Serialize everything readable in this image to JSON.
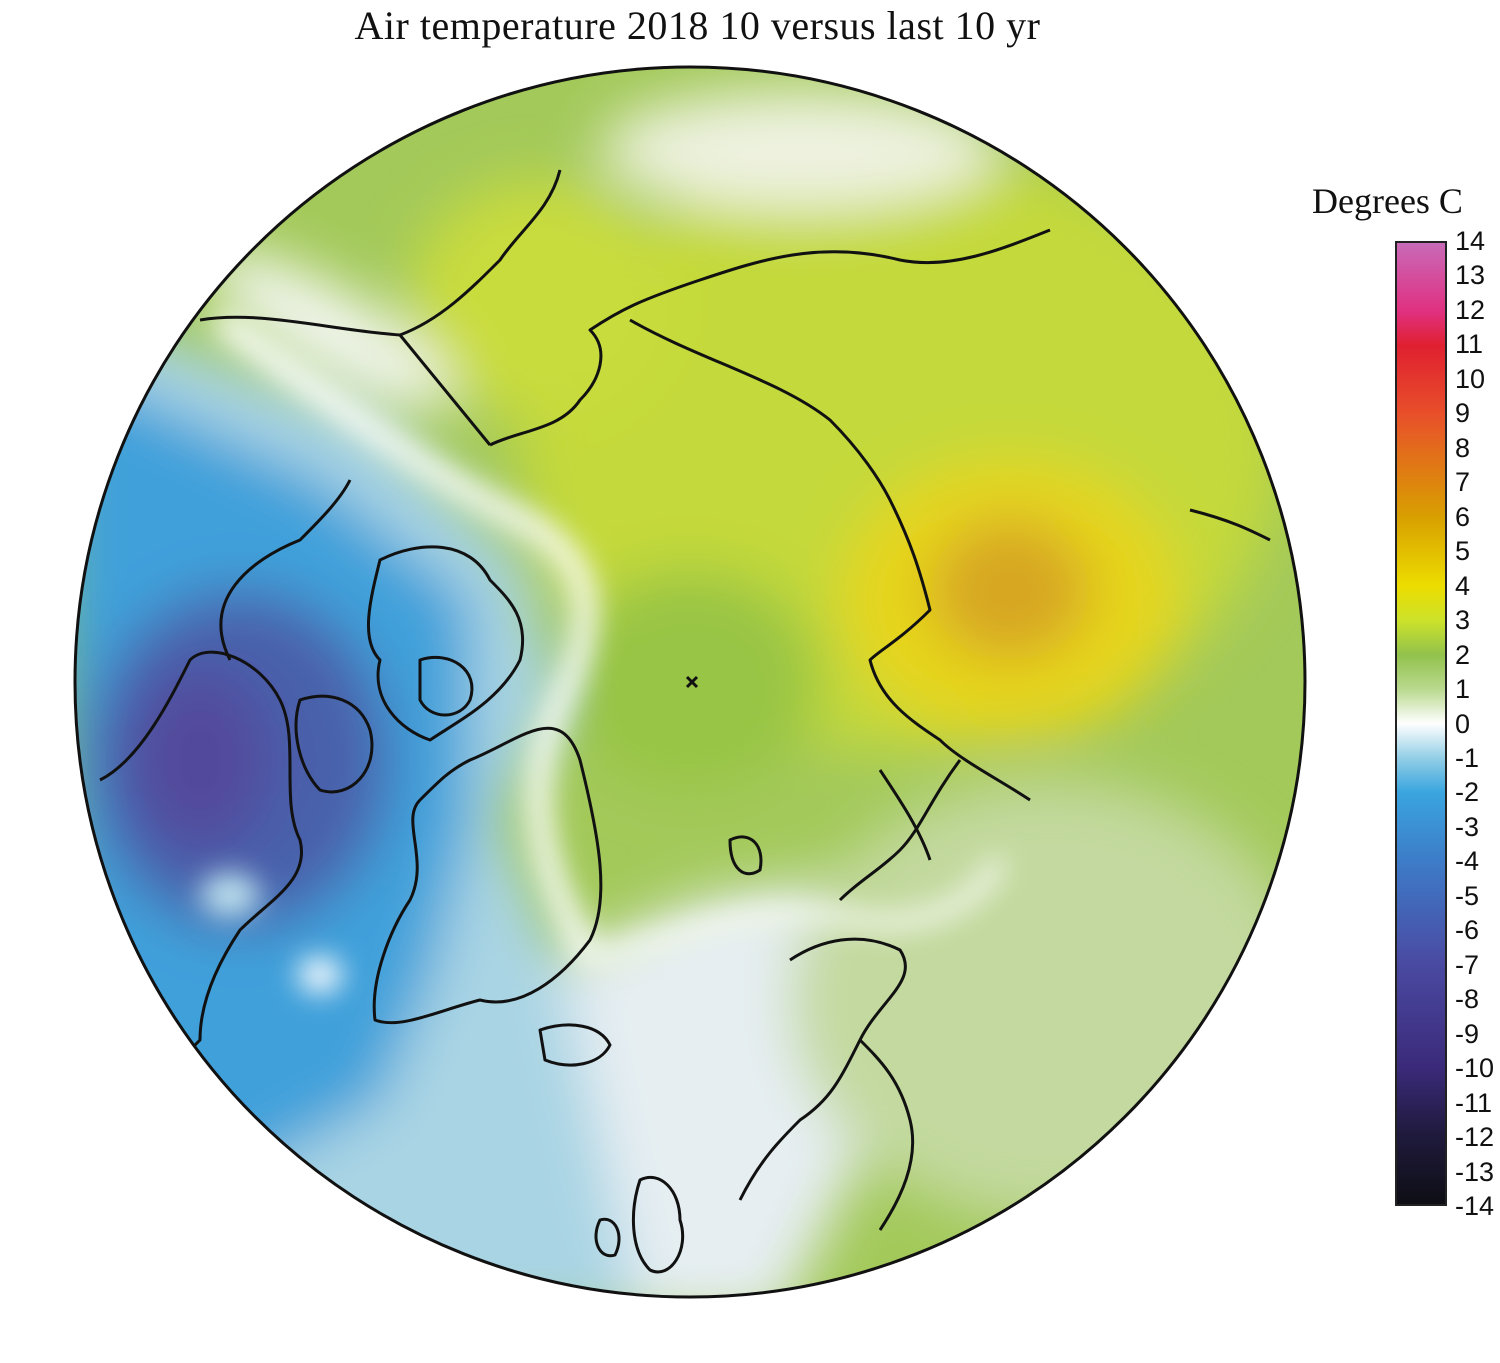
{
  "title": "Air temperature 2018 10 versus last 10 yr",
  "legend": {
    "title": "Degrees C",
    "ticks": [
      "14",
      "13",
      "12",
      "11",
      "10",
      "9",
      "8",
      "7",
      "6",
      "5",
      "4",
      "3",
      "2",
      "1",
      "0",
      "-1",
      "-2",
      "-3",
      "-4",
      "-5",
      "-6",
      "-7",
      "-8",
      "-9",
      "-10",
      "-11",
      "-12",
      "-13",
      "-14"
    ],
    "range": [
      -14,
      14
    ],
    "colors": [
      "#0e0e14",
      "#1f1a3c",
      "#3b2a7a",
      "#4a4aa2",
      "#3d7cc8",
      "#3aa5df",
      "#93cfe6",
      "#ffffff",
      "#b9d98e",
      "#92c24c",
      "#cce22a",
      "#ecdd00",
      "#d8a000",
      "#e8502a",
      "#e02030",
      "#e03080",
      "#c86ab8"
    ],
    "color_stops": [
      -14,
      -12,
      -10,
      -7,
      -4,
      -2,
      -1,
      0,
      1,
      2,
      3,
      4,
      6,
      9,
      11,
      12,
      14
    ]
  },
  "map": {
    "projection": "north polar stereographic",
    "pole_marker": "x-icon",
    "colors": {
      "warm_max": "#d5a41a",
      "positive": "#9ac93c",
      "neutral": "#ffffff",
      "negative": "#a9d4e4",
      "cold": "#3b9bd8",
      "cold_max": "#4f5fa8",
      "coastline": "#111111"
    }
  }
}
